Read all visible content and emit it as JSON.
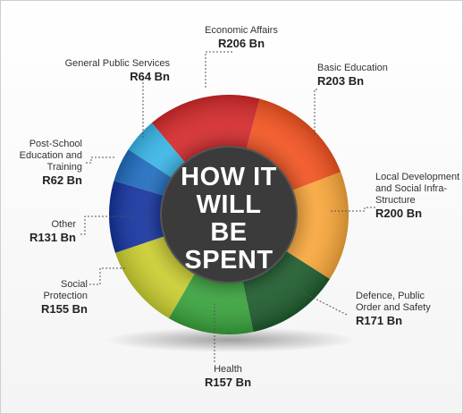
{
  "chart_data": {
    "type": "donut",
    "title": "HOW IT WILL BE SPENT",
    "categories": [
      "Economic Affairs",
      "Basic Education",
      "Local Development and Social Infra-Structure",
      "Defence, Public Order and Safety",
      "Health",
      "Social Protection",
      "Other",
      "Post-School Education and Training",
      "General Public Services"
    ],
    "values": [
      206,
      203,
      200,
      171,
      157,
      155,
      131,
      62,
      64
    ],
    "value_labels": [
      "R206 Bn",
      "R203 Bn",
      "R200 Bn",
      "R171 Bn",
      "R157 Bn",
      "R155 Bn",
      "R131 Bn",
      "R62 Bn",
      "R64 Bn"
    ],
    "colors": [
      "#d3282a",
      "#f2521f",
      "#f8a63a",
      "#1c5a2b",
      "#37a13b",
      "#c9cd2e",
      "#14339e",
      "#1f6cbf",
      "#37b5e7"
    ]
  }
}
